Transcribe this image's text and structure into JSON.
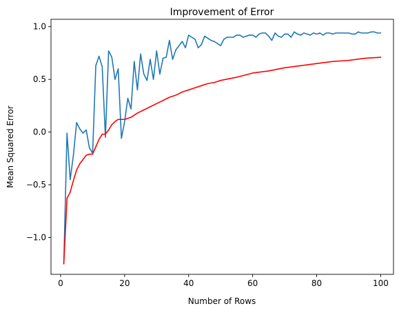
{
  "chart_data": {
    "type": "line",
    "title": "Improvement of Error",
    "xlabel": "Number of Rows",
    "ylabel": "Mean Squared Error",
    "xlim": [
      -3,
      104
    ],
    "ylim": [
      -1.35,
      1.07
    ],
    "xticks": [
      0,
      20,
      40,
      60,
      80,
      100
    ],
    "xtick_labels": [
      "0",
      "20",
      "40",
      "60",
      "80",
      "100"
    ],
    "yticks": [
      -1.0,
      -0.5,
      0.0,
      0.5,
      1.0
    ],
    "ytick_labels": [
      "−1.0",
      "−0.5",
      "0.0",
      "0.5",
      "1.0"
    ],
    "grid": false,
    "legend": "none",
    "series": [
      {
        "color": "#1f77b4",
        "x": [
          1,
          2,
          3,
          4,
          5,
          6,
          7,
          8,
          9,
          10,
          11,
          12,
          13,
          14,
          15,
          16,
          17,
          18,
          19,
          20,
          21,
          22,
          23,
          24,
          25,
          26,
          27,
          28,
          29,
          30,
          31,
          32,
          33,
          34,
          35,
          36,
          37,
          38,
          39,
          40,
          41,
          42,
          43,
          44,
          45,
          46,
          47,
          48,
          49,
          50,
          51,
          52,
          53,
          54,
          55,
          56,
          57,
          58,
          59,
          60,
          61,
          62,
          63,
          64,
          65,
          66,
          67,
          68,
          69,
          70,
          71,
          72,
          73,
          74,
          75,
          76,
          77,
          78,
          79,
          80,
          81,
          82,
          83,
          84,
          85,
          86,
          87,
          88,
          89,
          90,
          91,
          92,
          93,
          94,
          95,
          96,
          97,
          98,
          99,
          100
        ],
        "y": [
          -1.25,
          -0.01,
          -0.45,
          -0.22,
          0.09,
          0.03,
          -0.01,
          0.02,
          -0.15,
          -0.2,
          0.63,
          0.72,
          0.62,
          -0.05,
          0.77,
          0.71,
          0.5,
          0.6,
          -0.06,
          0.1,
          0.32,
          0.22,
          0.67,
          0.4,
          0.74,
          0.55,
          0.49,
          0.69,
          0.5,
          0.77,
          0.55,
          0.7,
          0.71,
          0.87,
          0.69,
          0.78,
          0.82,
          0.86,
          0.8,
          0.92,
          0.9,
          0.88,
          0.8,
          0.83,
          0.91,
          0.89,
          0.87,
          0.86,
          0.84,
          0.82,
          0.88,
          0.9,
          0.9,
          0.9,
          0.92,
          0.92,
          0.9,
          0.91,
          0.92,
          0.92,
          0.9,
          0.93,
          0.94,
          0.94,
          0.91,
          0.87,
          0.94,
          0.91,
          0.9,
          0.93,
          0.93,
          0.9,
          0.95,
          0.93,
          0.92,
          0.94,
          0.93,
          0.92,
          0.94,
          0.93,
          0.94,
          0.92,
          0.94,
          0.94,
          0.93,
          0.94,
          0.94,
          0.94,
          0.94,
          0.94,
          0.93,
          0.93,
          0.95,
          0.94,
          0.94,
          0.94,
          0.95,
          0.95,
          0.94,
          0.94
        ]
      },
      {
        "color": "#ff0000",
        "x": [
          1,
          2,
          3,
          4,
          5,
          6,
          7,
          8,
          9,
          10,
          11,
          12,
          13,
          14,
          15,
          16,
          17,
          18,
          19,
          20,
          22,
          24,
          26,
          28,
          30,
          32,
          34,
          36,
          38,
          40,
          42,
          44,
          46,
          48,
          50,
          55,
          60,
          65,
          70,
          75,
          80,
          85,
          90,
          95,
          100
        ],
        "y": [
          -1.25,
          -0.63,
          -0.57,
          -0.46,
          -0.36,
          -0.3,
          -0.26,
          -0.22,
          -0.21,
          -0.21,
          -0.14,
          -0.07,
          -0.02,
          -0.02,
          0.02,
          0.07,
          0.1,
          0.12,
          0.12,
          0.12,
          0.14,
          0.18,
          0.21,
          0.24,
          0.27,
          0.3,
          0.33,
          0.35,
          0.38,
          0.4,
          0.42,
          0.44,
          0.46,
          0.47,
          0.49,
          0.52,
          0.56,
          0.58,
          0.61,
          0.63,
          0.65,
          0.67,
          0.68,
          0.7,
          0.71
        ]
      }
    ]
  }
}
